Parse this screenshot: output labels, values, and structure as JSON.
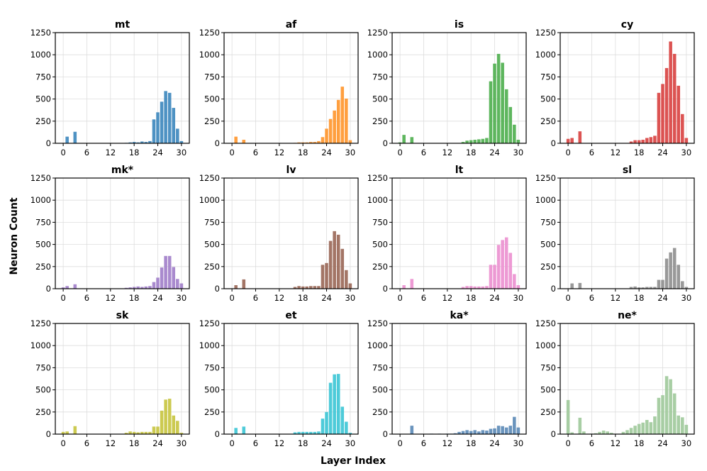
{
  "figure": {
    "xlabel": "Layer Index",
    "ylabel": "Neuron Count"
  },
  "chart_data": [
    {
      "type": "bar",
      "title": "mt",
      "color": "#3b86bd",
      "xlim": [
        -2,
        32
      ],
      "ylim": [
        0,
        1250
      ],
      "xticks": [
        0,
        6,
        12,
        18,
        24,
        30
      ],
      "yticks": [
        0,
        250,
        500,
        750,
        1000,
        1250
      ],
      "categories": [
        0,
        1,
        2,
        3,
        4,
        5,
        6,
        7,
        8,
        9,
        10,
        11,
        12,
        13,
        14,
        15,
        16,
        17,
        18,
        19,
        20,
        21,
        22,
        23,
        24,
        25,
        26,
        27,
        28,
        29,
        30,
        31
      ],
      "values": [
        0,
        75,
        0,
        130,
        0,
        0,
        0,
        0,
        0,
        0,
        0,
        0,
        0,
        0,
        0,
        0,
        5,
        10,
        15,
        10,
        20,
        15,
        25,
        270,
        350,
        470,
        590,
        570,
        400,
        165,
        25,
        0
      ]
    },
    {
      "type": "bar",
      "title": "af",
      "color": "#ff952a",
      "xlim": [
        -2,
        32
      ],
      "ylim": [
        0,
        1250
      ],
      "xticks": [
        0,
        6,
        12,
        18,
        24,
        30
      ],
      "yticks": [
        0,
        250,
        500,
        750,
        1000,
        1250
      ],
      "categories": [
        0,
        1,
        2,
        3,
        4,
        5,
        6,
        7,
        8,
        9,
        10,
        11,
        12,
        13,
        14,
        15,
        16,
        17,
        18,
        19,
        20,
        21,
        22,
        23,
        24,
        25,
        26,
        27,
        28,
        29,
        30,
        31
      ],
      "values": [
        0,
        75,
        0,
        40,
        0,
        0,
        0,
        0,
        0,
        0,
        0,
        0,
        0,
        0,
        0,
        0,
        5,
        10,
        10,
        10,
        15,
        15,
        25,
        70,
        165,
        275,
        370,
        490,
        640,
        505,
        35,
        0
      ]
    },
    {
      "type": "bar",
      "title": "is",
      "color": "#4cae4c",
      "xlim": [
        -2,
        32
      ],
      "ylim": [
        0,
        1250
      ],
      "xticks": [
        0,
        6,
        12,
        18,
        24,
        30
      ],
      "yticks": [
        0,
        250,
        500,
        750,
        1000,
        1250
      ],
      "categories": [
        0,
        1,
        2,
        3,
        4,
        5,
        6,
        7,
        8,
        9,
        10,
        11,
        12,
        13,
        14,
        15,
        16,
        17,
        18,
        19,
        20,
        21,
        22,
        23,
        24,
        25,
        26,
        27,
        28,
        29,
        30,
        31
      ],
      "values": [
        10,
        95,
        0,
        70,
        0,
        0,
        0,
        0,
        0,
        0,
        0,
        0,
        0,
        0,
        0,
        0,
        15,
        30,
        35,
        40,
        45,
        50,
        60,
        700,
        900,
        1010,
        910,
        610,
        410,
        210,
        40,
        0
      ]
    },
    {
      "type": "bar",
      "title": "cy",
      "color": "#d8403f",
      "xlim": [
        -2,
        32
      ],
      "ylim": [
        0,
        1250
      ],
      "xticks": [
        0,
        6,
        12,
        18,
        24,
        30
      ],
      "yticks": [
        0,
        250,
        500,
        750,
        1000,
        1250
      ],
      "categories": [
        0,
        1,
        2,
        3,
        4,
        5,
        6,
        7,
        8,
        9,
        10,
        11,
        12,
        13,
        14,
        15,
        16,
        17,
        18,
        19,
        20,
        21,
        22,
        23,
        24,
        25,
        26,
        27,
        28,
        29,
        30,
        31
      ],
      "values": [
        50,
        60,
        0,
        135,
        0,
        0,
        0,
        0,
        0,
        0,
        0,
        0,
        0,
        0,
        0,
        0,
        20,
        35,
        35,
        40,
        60,
        70,
        85,
        570,
        670,
        850,
        1150,
        1010,
        650,
        330,
        60,
        0
      ]
    },
    {
      "type": "bar",
      "title": "mk*",
      "color": "#a07dc9",
      "xlim": [
        -2,
        32
      ],
      "ylim": [
        0,
        1250
      ],
      "xticks": [
        0,
        6,
        12,
        18,
        24,
        30
      ],
      "yticks": [
        0,
        250,
        500,
        750,
        1000,
        1250
      ],
      "categories": [
        0,
        1,
        2,
        3,
        4,
        5,
        6,
        7,
        8,
        9,
        10,
        11,
        12,
        13,
        14,
        15,
        16,
        17,
        18,
        19,
        20,
        21,
        22,
        23,
        24,
        25,
        26,
        27,
        28,
        29,
        30,
        31
      ],
      "values": [
        15,
        30,
        0,
        50,
        0,
        0,
        0,
        0,
        0,
        0,
        0,
        0,
        0,
        0,
        0,
        0,
        10,
        15,
        20,
        25,
        20,
        25,
        30,
        75,
        125,
        240,
        370,
        370,
        245,
        110,
        60,
        0
      ]
    },
    {
      "type": "bar",
      "title": "lv",
      "color": "#996655",
      "xlim": [
        -2,
        32
      ],
      "ylim": [
        0,
        1250
      ],
      "xticks": [
        0,
        6,
        12,
        18,
        24,
        30
      ],
      "yticks": [
        0,
        250,
        500,
        750,
        1000,
        1250
      ],
      "categories": [
        0,
        1,
        2,
        3,
        4,
        5,
        6,
        7,
        8,
        9,
        10,
        11,
        12,
        13,
        14,
        15,
        16,
        17,
        18,
        19,
        20,
        21,
        22,
        23,
        24,
        25,
        26,
        27,
        28,
        29,
        30,
        31
      ],
      "values": [
        0,
        40,
        0,
        105,
        0,
        0,
        0,
        0,
        0,
        0,
        0,
        0,
        0,
        0,
        0,
        0,
        20,
        30,
        25,
        25,
        30,
        30,
        30,
        270,
        290,
        540,
        650,
        610,
        450,
        210,
        60,
        0
      ]
    },
    {
      "type": "bar",
      "title": "lt",
      "color": "#eb8fcf",
      "xlim": [
        -2,
        32
      ],
      "ylim": [
        0,
        1250
      ],
      "xticks": [
        0,
        6,
        12,
        18,
        24,
        30
      ],
      "yticks": [
        0,
        250,
        500,
        750,
        1000,
        1250
      ],
      "categories": [
        0,
        1,
        2,
        3,
        4,
        5,
        6,
        7,
        8,
        9,
        10,
        11,
        12,
        13,
        14,
        15,
        16,
        17,
        18,
        19,
        20,
        21,
        22,
        23,
        24,
        25,
        26,
        27,
        28,
        29,
        30,
        31
      ],
      "values": [
        0,
        40,
        0,
        110,
        0,
        0,
        0,
        0,
        0,
        0,
        0,
        0,
        0,
        0,
        0,
        0,
        20,
        30,
        30,
        25,
        25,
        25,
        30,
        270,
        270,
        495,
        550,
        580,
        405,
        165,
        40,
        0
      ]
    },
    {
      "type": "bar",
      "title": "sl",
      "color": "#8e8e8e",
      "xlim": [
        -2,
        32
      ],
      "ylim": [
        0,
        1250
      ],
      "xticks": [
        0,
        6,
        12,
        18,
        24,
        30
      ],
      "yticks": [
        0,
        250,
        500,
        750,
        1000,
        1250
      ],
      "categories": [
        0,
        1,
        2,
        3,
        4,
        5,
        6,
        7,
        8,
        9,
        10,
        11,
        12,
        13,
        14,
        15,
        16,
        17,
        18,
        19,
        20,
        21,
        22,
        23,
        24,
        25,
        26,
        27,
        28,
        29,
        30,
        31
      ],
      "values": [
        0,
        60,
        0,
        65,
        0,
        0,
        0,
        0,
        0,
        0,
        0,
        0,
        0,
        0,
        0,
        0,
        20,
        25,
        15,
        15,
        20,
        20,
        20,
        100,
        100,
        340,
        410,
        460,
        270,
        85,
        20,
        0
      ]
    },
    {
      "type": "bar",
      "title": "sk",
      "color": "#c6c43e",
      "xlim": [
        -2,
        32
      ],
      "ylim": [
        0,
        1250
      ],
      "xticks": [
        0,
        6,
        12,
        18,
        24,
        30
      ],
      "yticks": [
        0,
        250,
        500,
        750,
        1000,
        1250
      ],
      "categories": [
        0,
        1,
        2,
        3,
        4,
        5,
        6,
        7,
        8,
        9,
        10,
        11,
        12,
        13,
        14,
        15,
        16,
        17,
        18,
        19,
        20,
        21,
        22,
        23,
        24,
        25,
        26,
        27,
        28,
        29,
        30,
        31
      ],
      "values": [
        25,
        30,
        0,
        90,
        0,
        0,
        0,
        0,
        0,
        0,
        0,
        0,
        0,
        0,
        0,
        0,
        15,
        30,
        25,
        20,
        25,
        25,
        25,
        85,
        85,
        265,
        390,
        400,
        210,
        150,
        15,
        0
      ]
    },
    {
      "type": "bar",
      "title": "et",
      "color": "#3bc5d5",
      "xlim": [
        -2,
        32
      ],
      "ylim": [
        0,
        1250
      ],
      "xticks": [
        0,
        6,
        12,
        18,
        24,
        30
      ],
      "yticks": [
        0,
        250,
        500,
        750,
        1000,
        1250
      ],
      "categories": [
        0,
        1,
        2,
        3,
        4,
        5,
        6,
        7,
        8,
        9,
        10,
        11,
        12,
        13,
        14,
        15,
        16,
        17,
        18,
        19,
        20,
        21,
        22,
        23,
        24,
        25,
        26,
        27,
        28,
        29,
        30,
        31
      ],
      "values": [
        0,
        70,
        0,
        85,
        0,
        0,
        0,
        0,
        0,
        0,
        0,
        0,
        0,
        0,
        0,
        0,
        20,
        25,
        25,
        25,
        25,
        25,
        30,
        175,
        250,
        580,
        675,
        680,
        310,
        140,
        15,
        0
      ]
    },
    {
      "type": "bar",
      "title": "ka*",
      "color": "#5a88b6",
      "xlim": [
        -2,
        32
      ],
      "ylim": [
        0,
        1250
      ],
      "xticks": [
        0,
        6,
        12,
        18,
        24,
        30
      ],
      "yticks": [
        0,
        250,
        500,
        750,
        1000,
        1250
      ],
      "categories": [
        0,
        1,
        2,
        3,
        4,
        5,
        6,
        7,
        8,
        9,
        10,
        11,
        12,
        13,
        14,
        15,
        16,
        17,
        18,
        19,
        20,
        21,
        22,
        23,
        24,
        25,
        26,
        27,
        28,
        29,
        30,
        31
      ],
      "values": [
        0,
        0,
        0,
        95,
        0,
        0,
        0,
        0,
        5,
        0,
        5,
        0,
        5,
        5,
        10,
        25,
        35,
        45,
        35,
        45,
        30,
        45,
        40,
        60,
        65,
        95,
        90,
        75,
        95,
        195,
        75,
        0
      ]
    },
    {
      "type": "bar",
      "title": "ne*",
      "color": "#9ec99a",
      "xlim": [
        -2,
        32
      ],
      "ylim": [
        0,
        1250
      ],
      "xticks": [
        0,
        6,
        12,
        18,
        24,
        30
      ],
      "yticks": [
        0,
        250,
        500,
        750,
        1000,
        1250
      ],
      "categories": [
        0,
        1,
        2,
        3,
        4,
        5,
        6,
        7,
        8,
        9,
        10,
        11,
        12,
        13,
        14,
        15,
        16,
        17,
        18,
        19,
        20,
        21,
        22,
        23,
        24,
        25,
        26,
        27,
        28,
        29,
        30,
        31
      ],
      "values": [
        385,
        20,
        0,
        185,
        30,
        0,
        5,
        10,
        25,
        40,
        30,
        15,
        0,
        0,
        25,
        45,
        70,
        95,
        115,
        130,
        160,
        135,
        200,
        410,
        440,
        655,
        620,
        460,
        210,
        190,
        105,
        0
      ]
    }
  ]
}
